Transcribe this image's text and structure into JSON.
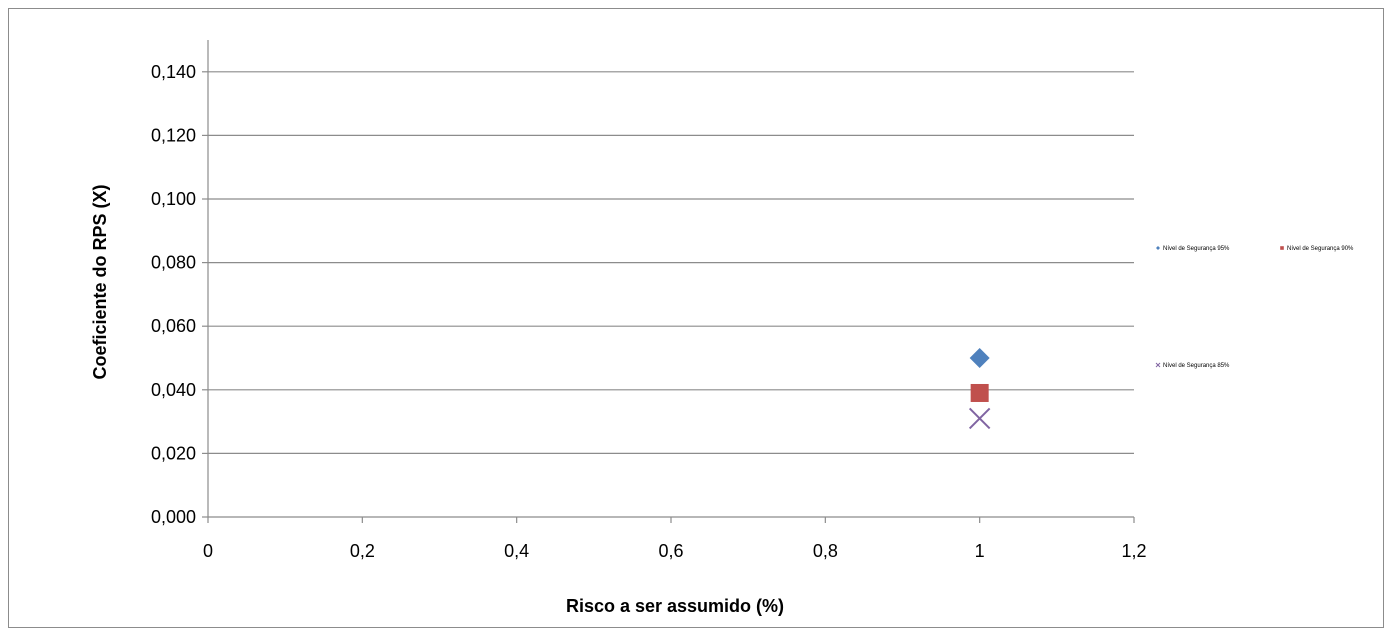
{
  "chart_data": {
    "type": "scatter",
    "xlabel": "Risco a ser assumido (%)",
    "ylabel": "Coeficiente do RPS (Χ)",
    "xlim": [
      0,
      1.2
    ],
    "ylim": [
      0,
      0.15
    ],
    "xticks": [
      0,
      0.2,
      0.4,
      0.6,
      0.8,
      1,
      1.2
    ],
    "xtick_labels": [
      "0",
      "0,2",
      "0,4",
      "0,6",
      "0,8",
      "1",
      "1,2"
    ],
    "yticks": [
      0,
      0.02,
      0.04,
      0.06,
      0.08,
      0.1,
      0.12,
      0.14
    ],
    "ytick_labels": [
      "0,000",
      "0,020",
      "0,040",
      "0,060",
      "0,080",
      "0,100",
      "0,120",
      "0,140"
    ],
    "grid": "horizontal",
    "legend_position": "right",
    "series": [
      {
        "name": "Nível de Segurança 95%",
        "marker": "diamond",
        "color": "#4F81BD",
        "points": [
          {
            "x": 1,
            "y": 0.05
          }
        ]
      },
      {
        "name": "Nível de Segurança 90%",
        "marker": "square",
        "color": "#C0504D",
        "points": [
          {
            "x": 1,
            "y": 0.039
          }
        ]
      },
      {
        "name": "Nível de Segurança 85%",
        "marker": "x",
        "color": "#8064A2",
        "points": [
          {
            "x": 1,
            "y": 0.031
          }
        ]
      }
    ]
  }
}
